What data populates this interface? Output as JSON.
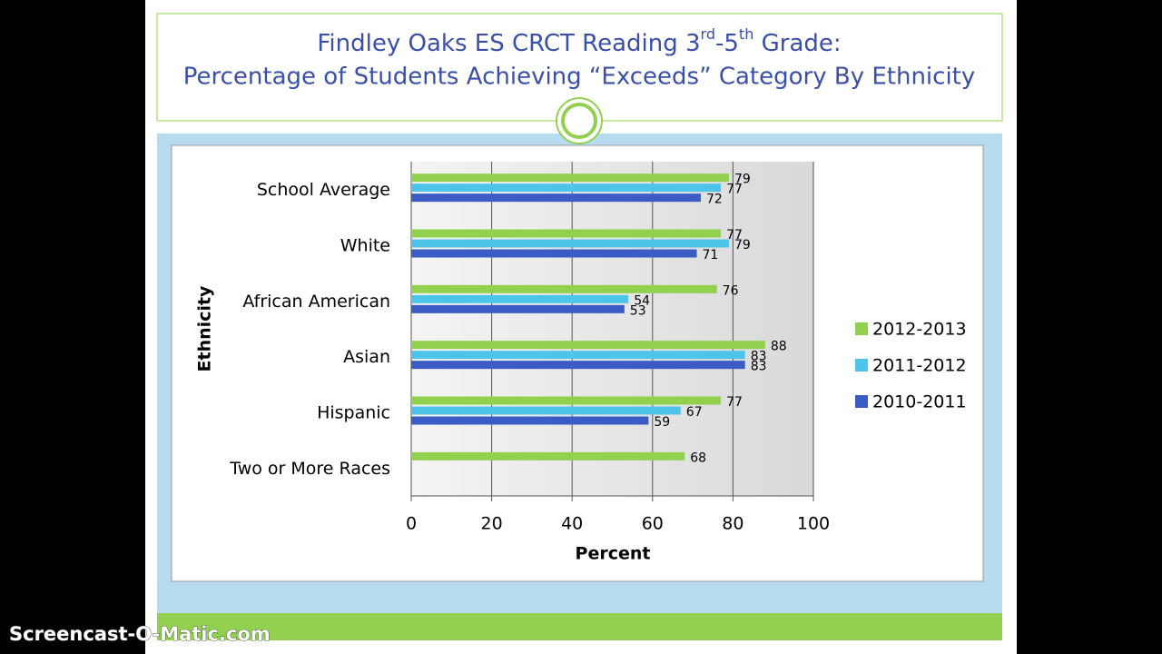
{
  "chart_data": {
    "type": "bar",
    "orientation": "horizontal",
    "title": [
      [
        "Findley Oaks ES CRCT Reading 3",
        "rd",
        "-5",
        "th",
        " Grade:"
      ],
      [
        "Percentage of Students Achieving “Exceeds” Category By Ethnicity"
      ]
    ],
    "categories": [
      "School Average",
      "White",
      "African American",
      "Asian",
      "Hispanic",
      "Two or More Races"
    ],
    "series": [
      {
        "name": "2012-2013",
        "color": "#92d050",
        "values": [
          79,
          77,
          76,
          88,
          77,
          68
        ]
      },
      {
        "name": "2011-2012",
        "color": "#4fc4ea",
        "values": [
          77,
          79,
          54,
          83,
          67,
          null
        ]
      },
      {
        "name": "2010-2011",
        "color": "#3a5cc4",
        "values": [
          72,
          71,
          53,
          83,
          59,
          null
        ]
      }
    ],
    "xlim": [
      0,
      100
    ],
    "xticks": [
      0,
      20,
      40,
      60,
      80,
      100
    ],
    "grid": true,
    "x_label": "Percent",
    "y_label": "Ethnicity",
    "legend": "right"
  },
  "watermark": "Screencast-O-Matic.com"
}
